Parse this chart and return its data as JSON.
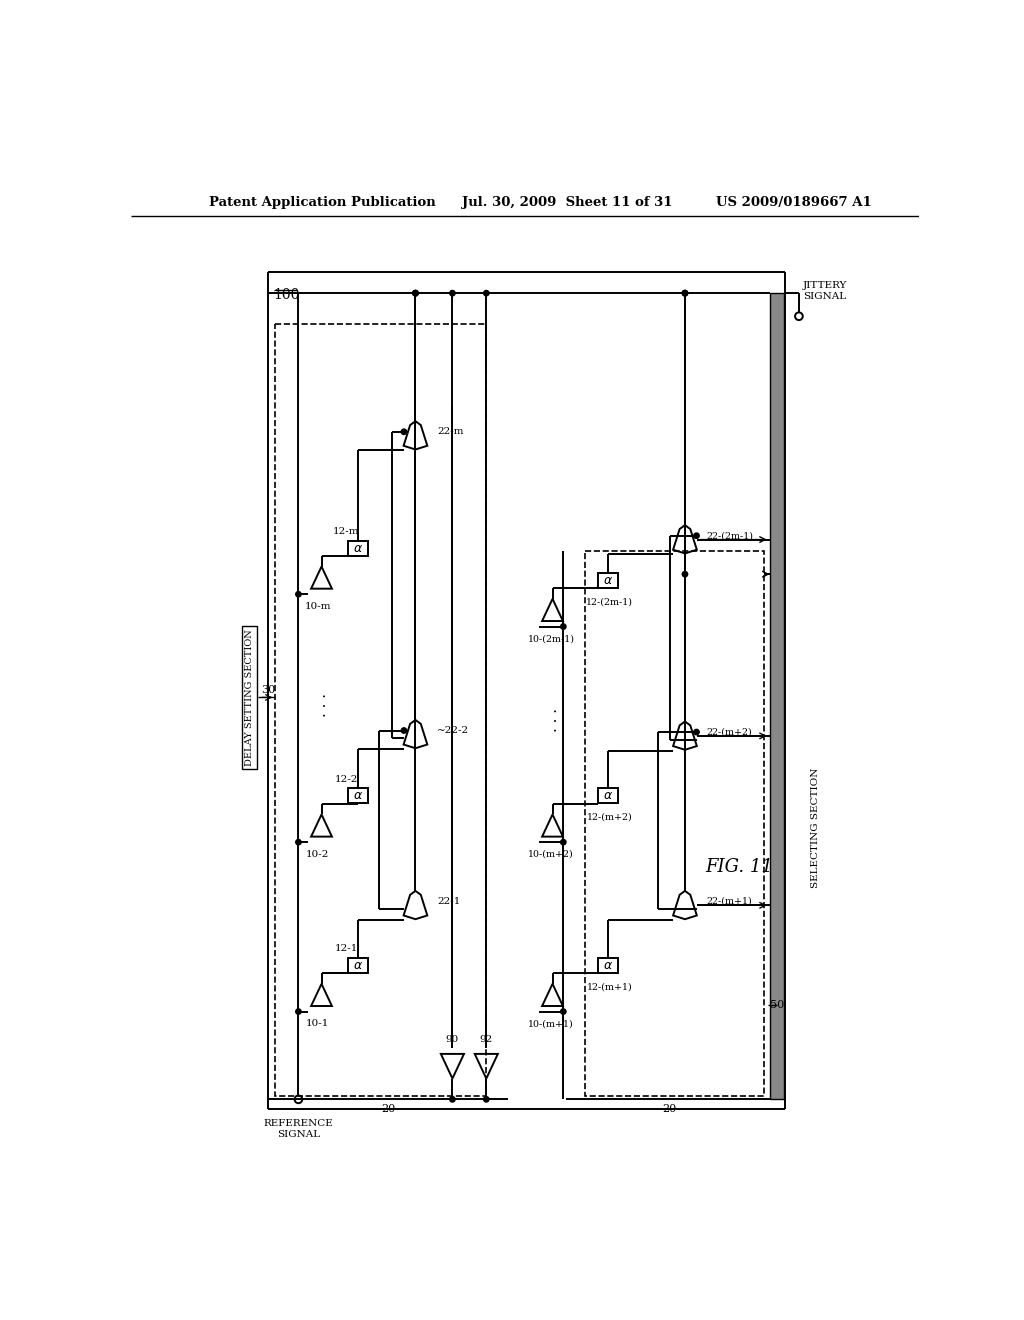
{
  "header_left": "Patent Application Publication",
  "header_mid": "Jul. 30, 2009  Sheet 11 of 31",
  "header_right": "US 2009/0189667 A1",
  "fig_label": "FIG. 11",
  "bg": "#ffffff",
  "diagram_ref": "100",
  "delay_label": "DELAY SETTING SECTION",
  "delay_ref": "30",
  "sel_label": "SELECTING SECTION",
  "sel_ref": "50",
  "ref_signal": "REFERENCE\nSIGNAL",
  "jit_signal": "JITTERY\nSIGNAL",
  "inv_labels": [
    "90",
    "92"
  ],
  "left_buf_labels": [
    "10-1",
    "10-2",
    "10-m"
  ],
  "left_att_labels": [
    "12-1",
    "12-2",
    "12-m"
  ],
  "left_mux_labels": [
    "22-1",
    "22-2",
    "22-m"
  ],
  "right_buf_labels": [
    "10-(m+1)",
    "10-(m+2)",
    "10-(2m-1)"
  ],
  "right_att_labels": [
    "12-(m+1)",
    "12-(m+2)",
    "12-(2m-1)"
  ],
  "right_mux_labels": [
    "22-(m+1)",
    "22-(m+2)",
    "22-(2m-1)"
  ],
  "bus_label": "20",
  "lw": 1.4
}
